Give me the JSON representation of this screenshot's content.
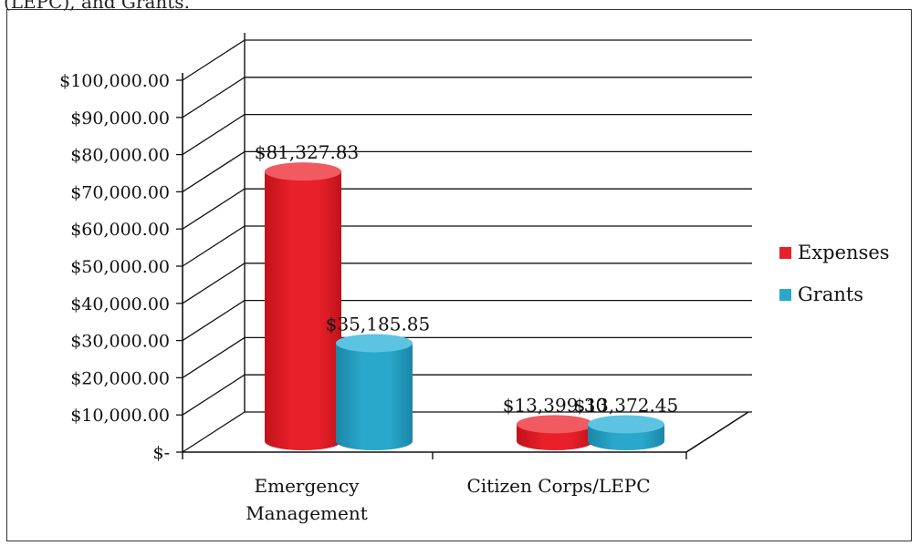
{
  "page": {
    "top_fragment": "(LEPC), and Grants."
  },
  "chart_data": {
    "type": "bar",
    "categories": [
      "Emergency Management",
      "Citizen Corps/LEPC"
    ],
    "series": [
      {
        "name": "Expenses",
        "values": [
          81327.83,
          13399.3
        ],
        "color": "#e8202a",
        "dark": "#c0121b",
        "light": "#f05a60"
      },
      {
        "name": "Grants",
        "values": [
          35185.85,
          13372.45
        ],
        "color": "#2aa8cc",
        "dark": "#1a86a6",
        "light": "#5cc4e2"
      }
    ],
    "data_labels": [
      [
        "$81,327.83",
        "$13,399.30"
      ],
      [
        "$35,185.85",
        "$13,372.45"
      ]
    ],
    "y_ticks": [
      "$-",
      "$10,000.00",
      "$20,000.00",
      "$30,000.00",
      "$40,000.00",
      "$50,000.00",
      "$60,000.00",
      "$70,000.00",
      "$80,000.00",
      "$90,000.00",
      "$100,000.00"
    ],
    "ylim": [
      0,
      100000
    ],
    "y_step": 10000,
    "gridlines": true,
    "legend_position": "right",
    "title": "",
    "xlabel": "",
    "ylabel": ""
  }
}
